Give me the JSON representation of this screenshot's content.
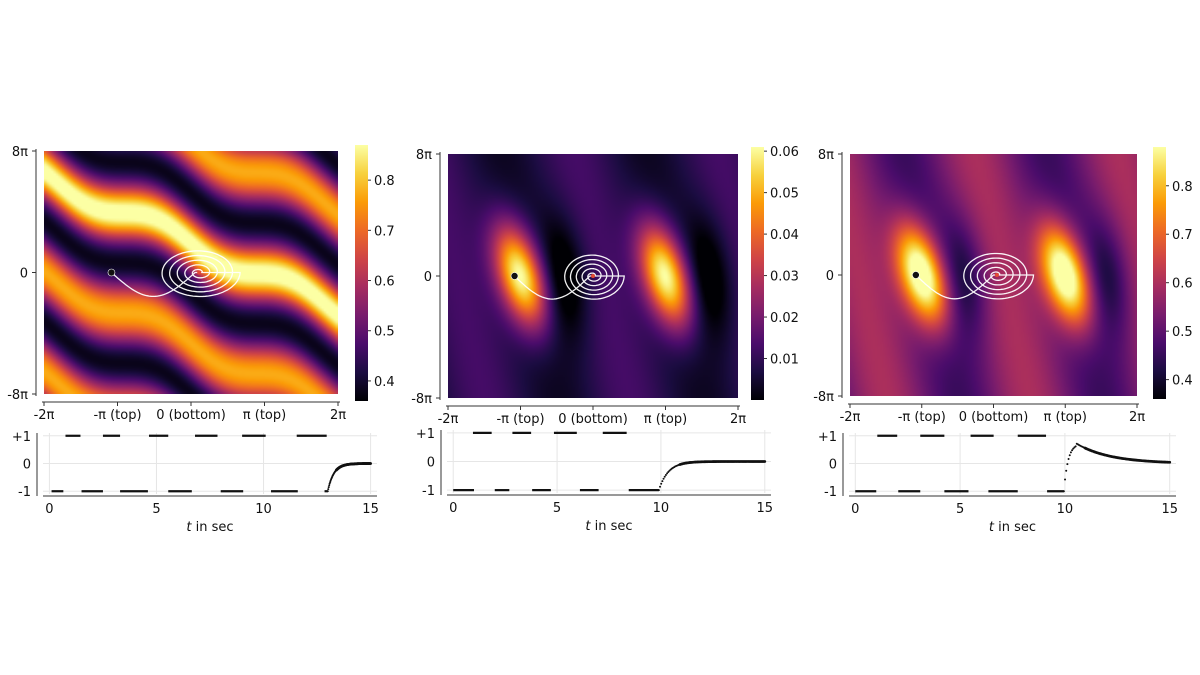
{
  "colors": {
    "background": "#ffffff",
    "trajectory": "#ffffff",
    "marker": "#111111",
    "inferno_stops": [
      "#000004",
      "#1b0c41",
      "#4a0c6b",
      "#781c6d",
      "#a52c60",
      "#cf4446",
      "#ed6925",
      "#fb9b06",
      "#f7d13d",
      "#fcffa4"
    ]
  },
  "chart_data": [
    {
      "type": "heatmap",
      "name": "panel-1-heatmap",
      "xlabel": "",
      "ylabel": "",
      "xlim": [
        -6.2832,
        6.2832
      ],
      "ylim": [
        -25.1327,
        25.1327
      ],
      "x_ticks": [
        {
          "value": -6.2832,
          "label": "-2π"
        },
        {
          "value": -3.1416,
          "label": "-π (top)"
        },
        {
          "value": 0,
          "label": "0 (bottom)"
        },
        {
          "value": 3.1416,
          "label": "π (top)"
        },
        {
          "value": 6.2832,
          "label": "2π"
        }
      ],
      "y_ticks": [
        {
          "value": 25.1327,
          "label": "8π"
        },
        {
          "value": 0,
          "label": "0"
        },
        {
          "value": -25.1327,
          "label": "-8π"
        }
      ],
      "colorbar": {
        "min": 0.36,
        "max": 0.87,
        "ticks": [
          0.4,
          0.5,
          0.6,
          0.7,
          0.8
        ],
        "tick_labels": [
          "0.4",
          "0.5",
          "0.6",
          "0.7",
          "0.8"
        ]
      },
      "pattern": {
        "kind": "diagonal-bands",
        "min": 0.36,
        "max": 0.87,
        "slope": -2.2,
        "period": 31,
        "wiggle": 0.18
      },
      "start_point": {
        "x": -3.4,
        "y": 0
      },
      "spiral": {
        "cx": 0.35,
        "cy": 0,
        "rx": 1.75,
        "ry": 5.2,
        "turns": 5
      }
    },
    {
      "type": "heatmap",
      "name": "panel-2-heatmap",
      "xlabel": "",
      "ylabel": "",
      "xlim": [
        -6.2832,
        6.2832
      ],
      "ylim": [
        -25.1327,
        25.1327
      ],
      "x_ticks": [
        {
          "value": -6.2832,
          "label": "-2π"
        },
        {
          "value": -3.1416,
          "label": "-π (top)"
        },
        {
          "value": 0,
          "label": "0 (bottom)"
        },
        {
          "value": 3.1416,
          "label": "π (top)"
        },
        {
          "value": 6.2832,
          "label": "2π"
        }
      ],
      "y_ticks": [
        {
          "value": 25.1327,
          "label": "8π"
        },
        {
          "value": 0,
          "label": "0"
        },
        {
          "value": -25.1327,
          "label": "-8π"
        }
      ],
      "colorbar": {
        "min": 0.0,
        "max": 0.061,
        "ticks": [
          0.01,
          0.02,
          0.03,
          0.04,
          0.05,
          0.06
        ],
        "tick_labels": [
          "0.01",
          "0.02",
          "0.03",
          "0.04",
          "0.05",
          "0.06"
        ]
      },
      "pattern": {
        "kind": "blobs",
        "min": 0.0,
        "max": 0.061,
        "peaks": [
          {
            "x": -3.14,
            "y": 0
          },
          {
            "x": 3.14,
            "y": 0
          }
        ],
        "tilt": -2.5
      },
      "start_point": {
        "x": -3.4,
        "y": 0
      },
      "spiral": {
        "cx": 0.0,
        "cy": 0,
        "rx": 1.35,
        "ry": 5.0,
        "turns": 5
      }
    },
    {
      "type": "heatmap",
      "name": "panel-3-heatmap",
      "xlabel": "",
      "ylabel": "",
      "xlim": [
        -6.2832,
        6.2832
      ],
      "ylim": [
        -25.1327,
        25.1327
      ],
      "x_ticks": [
        {
          "value": -6.2832,
          "label": "-2π"
        },
        {
          "value": -3.1416,
          "label": "-π (top)"
        },
        {
          "value": 0,
          "label": "0 (bottom)"
        },
        {
          "value": 3.1416,
          "label": "π (top)"
        },
        {
          "value": 6.2832,
          "label": "2π"
        }
      ],
      "y_ticks": [
        {
          "value": 25.1327,
          "label": "8π"
        },
        {
          "value": 0,
          "label": "0"
        },
        {
          "value": -25.1327,
          "label": "-8π"
        }
      ],
      "colorbar": {
        "min": 0.36,
        "max": 0.88,
        "ticks": [
          0.4,
          0.5,
          0.6,
          0.7,
          0.8
        ],
        "tick_labels": [
          "0.4",
          "0.5",
          "0.6",
          "0.7",
          "0.8"
        ]
      },
      "pattern": {
        "kind": "blobs",
        "min": 0.36,
        "max": 0.88,
        "peaks": [
          {
            "x": -3.14,
            "y": 0
          },
          {
            "x": 3.14,
            "y": 0
          }
        ],
        "tilt": -2.5,
        "base": 0.45
      },
      "start_point": {
        "x": -3.4,
        "y": 0
      },
      "spiral": {
        "cx": 0.15,
        "cy": 0,
        "rx": 1.6,
        "ry": 5.2,
        "turns": 5
      }
    },
    {
      "type": "scatter",
      "name": "panel-1-control",
      "xlabel_italic": "t",
      "xlabel": " in sec",
      "xlim": [
        -0.3,
        15.3
      ],
      "ylim": [
        -1.1,
        1.1
      ],
      "x_ticks": [
        {
          "value": 0,
          "label": "0"
        },
        {
          "value": 5,
          "label": "5"
        },
        {
          "value": 10,
          "label": "10"
        },
        {
          "value": 15,
          "label": "15"
        }
      ],
      "y_ticks": [
        {
          "value": 1,
          "label": "+1"
        },
        {
          "value": 0,
          "label": "0"
        },
        {
          "value": -1,
          "label": "-1"
        }
      ],
      "grid": true,
      "bang_segments": [
        {
          "t0": 0.1,
          "t1": 0.65,
          "u": -1
        },
        {
          "t0": 0.75,
          "t1": 1.45,
          "u": 1
        },
        {
          "t0": 1.5,
          "t1": 2.5,
          "u": -1
        },
        {
          "t0": 2.5,
          "t1": 3.3,
          "u": 1
        },
        {
          "t0": 3.3,
          "t1": 4.6,
          "u": -1
        },
        {
          "t0": 4.65,
          "t1": 5.55,
          "u": 1
        },
        {
          "t0": 5.55,
          "t1": 6.65,
          "u": -1
        },
        {
          "t0": 6.8,
          "t1": 7.85,
          "u": 1
        },
        {
          "t0": 8.0,
          "t1": 9.05,
          "u": -1
        },
        {
          "t0": 9.0,
          "t1": 10.1,
          "u": 1
        },
        {
          "t0": 10.35,
          "t1": 11.6,
          "u": -1
        },
        {
          "t0": 11.55,
          "t1": 12.95,
          "u": 1
        },
        {
          "t0": 12.85,
          "t1": 13.0,
          "u": -1
        }
      ],
      "tail": {
        "t_start": 13.0,
        "t_end": 15.0,
        "u_start": -1,
        "u_end": 0,
        "kind": "rise",
        "tau": 0.28,
        "peak": 0
      }
    },
    {
      "type": "scatter",
      "name": "panel-2-control",
      "xlabel_italic": "t",
      "xlabel": " in sec",
      "xlim": [
        -0.3,
        15.3
      ],
      "ylim": [
        -1.1,
        1.1
      ],
      "x_ticks": [
        {
          "value": 0,
          "label": "0"
        },
        {
          "value": 5,
          "label": "5"
        },
        {
          "value": 10,
          "label": "10"
        },
        {
          "value": 15,
          "label": "15"
        }
      ],
      "y_ticks": [
        {
          "value": 1,
          "label": "+1"
        },
        {
          "value": 0,
          "label": "0"
        },
        {
          "value": -1,
          "label": "-1"
        }
      ],
      "grid": true,
      "bang_segments": [
        {
          "t0": 0.0,
          "t1": 1.0,
          "u": -1
        },
        {
          "t0": 0.95,
          "t1": 1.85,
          "u": 1
        },
        {
          "t0": 2.0,
          "t1": 2.7,
          "u": -1
        },
        {
          "t0": 2.85,
          "t1": 3.75,
          "u": 1
        },
        {
          "t0": 3.8,
          "t1": 4.7,
          "u": -1
        },
        {
          "t0": 4.85,
          "t1": 5.95,
          "u": 1
        },
        {
          "t0": 6.1,
          "t1": 7.0,
          "u": -1
        },
        {
          "t0": 7.2,
          "t1": 8.35,
          "u": 1
        },
        {
          "t0": 8.45,
          "t1": 9.9,
          "u": -1
        }
      ],
      "tail": {
        "t_start": 9.9,
        "t_end": 15.0,
        "u_start": -1,
        "u_end": 0,
        "kind": "rise",
        "tau": 0.45,
        "peak": 0
      }
    },
    {
      "type": "scatter",
      "name": "panel-3-control",
      "xlabel_italic": "t",
      "xlabel": " in sec",
      "xlim": [
        -0.3,
        15.3
      ],
      "ylim": [
        -1.1,
        1.1
      ],
      "x_ticks": [
        {
          "value": 0,
          "label": "0"
        },
        {
          "value": 5,
          "label": "5"
        },
        {
          "value": 10,
          "label": "10"
        },
        {
          "value": 15,
          "label": "15"
        }
      ],
      "y_ticks": [
        {
          "value": 1,
          "label": "+1"
        },
        {
          "value": 0,
          "label": "0"
        },
        {
          "value": -1,
          "label": "-1"
        }
      ],
      "grid": true,
      "bang_segments": [
        {
          "t0": 0.0,
          "t1": 1.0,
          "u": -1
        },
        {
          "t0": 1.05,
          "t1": 2.0,
          "u": 1
        },
        {
          "t0": 2.05,
          "t1": 3.1,
          "u": -1
        },
        {
          "t0": 3.1,
          "t1": 4.25,
          "u": 1
        },
        {
          "t0": 4.25,
          "t1": 5.4,
          "u": -1
        },
        {
          "t0": 5.5,
          "t1": 6.6,
          "u": 1
        },
        {
          "t0": 6.35,
          "t1": 7.75,
          "u": -1
        },
        {
          "t0": 7.75,
          "t1": 9.1,
          "u": 1
        },
        {
          "t0": 9.15,
          "t1": 9.95,
          "u": -1
        }
      ],
      "tail": {
        "t_start": 9.95,
        "t_end": 15.0,
        "u_start": -1,
        "u_end": 0,
        "kind": "overshoot",
        "tau": 0.2,
        "peak": 0.72
      }
    }
  ]
}
